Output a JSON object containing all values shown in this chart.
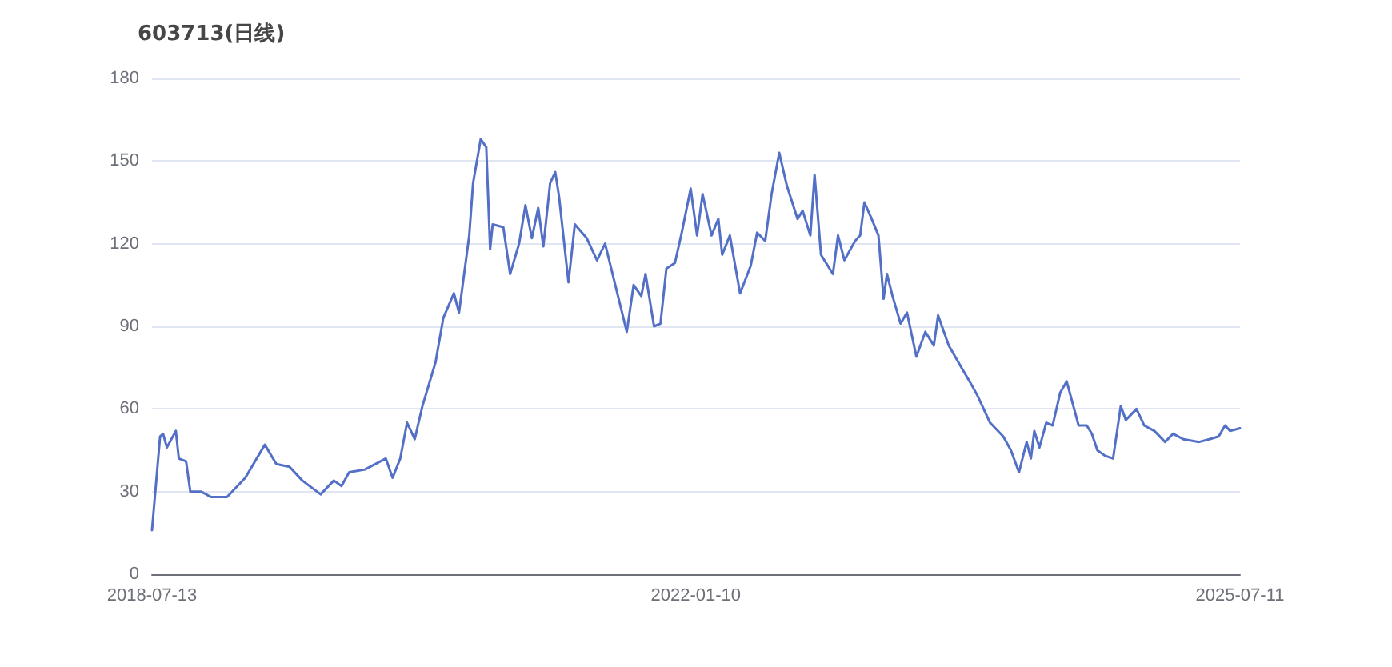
{
  "chart_data": {
    "type": "line",
    "title": "603713(日线)",
    "xlim": [
      "2018-07-13",
      "2025-07-11"
    ],
    "xticks": [
      "2018-07-13",
      "2022-01-10",
      "2025-07-11"
    ],
    "ylim": [
      0,
      180
    ],
    "yticks": [
      0,
      30,
      60,
      90,
      120,
      150,
      180
    ],
    "grid": "y",
    "marker": "none",
    "line_style": "solid",
    "series": [
      {
        "color": "#5470c6",
        "x": [
          "2018-07-13",
          "2018-08-01",
          "2018-08-08",
          "2018-08-17",
          "2018-09-07",
          "2018-09-14",
          "2018-10-01",
          "2018-10-11",
          "2018-11-05",
          "2018-11-29",
          "2019-01-05",
          "2019-02-17",
          "2019-04-04",
          "2019-05-01",
          "2019-06-01",
          "2019-07-01",
          "2019-08-13",
          "2019-09-13",
          "2019-10-01",
          "2019-10-19",
          "2019-11-25",
          "2020-01-13",
          "2020-01-29",
          "2020-02-16",
          "2020-03-03",
          "2020-03-21",
          "2020-04-08",
          "2020-05-09",
          "2020-05-27",
          "2020-06-21",
          "2020-07-03",
          "2020-07-27",
          "2020-08-05",
          "2020-08-23",
          "2020-09-05",
          "2020-09-14",
          "2020-09-20",
          "2020-10-15",
          "2020-10-31",
          "2020-11-21",
          "2020-12-06",
          "2020-12-21",
          "2021-01-05",
          "2021-01-17",
          "2021-02-02",
          "2021-02-14",
          "2021-02-23",
          "2021-03-17",
          "2021-04-01",
          "2021-04-29",
          "2021-05-23",
          "2021-06-11",
          "2021-07-05",
          "2021-08-01",
          "2021-08-17",
          "2021-09-04",
          "2021-09-14",
          "2021-10-04",
          "2021-10-19",
          "2021-11-02",
          "2021-11-22",
          "2021-12-08",
          "2021-12-29",
          "2022-01-13",
          "2022-01-26",
          "2022-02-16",
          "2022-03-04",
          "2022-03-13",
          "2022-03-31",
          "2022-04-24",
          "2022-05-19",
          "2022-06-03",
          "2022-06-22",
          "2022-07-07",
          "2022-07-25",
          "2022-08-12",
          "2022-09-06",
          "2022-09-18",
          "2022-10-06",
          "2022-10-16",
          "2022-10-31",
          "2022-11-28",
          "2022-12-10",
          "2022-12-25",
          "2023-01-19",
          "2023-01-31",
          "2023-02-10",
          "2023-02-27",
          "2023-03-15",
          "2023-03-27",
          "2023-04-04",
          "2023-04-17",
          "2023-05-06",
          "2023-05-21",
          "2023-06-12",
          "2023-07-03",
          "2023-07-23",
          "2023-08-02",
          "2023-08-27",
          "2023-09-26",
          "2023-10-15",
          "2023-11-02",
          "2023-12-02",
          "2024-01-02",
          "2024-01-20",
          "2024-02-08",
          "2024-02-26",
          "2024-03-07",
          "2024-03-15",
          "2024-03-27",
          "2024-04-12",
          "2024-04-27",
          "2024-05-15",
          "2024-05-30",
          "2024-06-27",
          "2024-07-16",
          "2024-07-28",
          "2024-08-10",
          "2024-08-28",
          "2024-09-16",
          "2024-10-04",
          "2024-10-16",
          "2024-11-10",
          "2024-11-28",
          "2024-12-22",
          "2025-01-16",
          "2025-02-04",
          "2025-02-28",
          "2025-04-06",
          "2025-04-30",
          "2025-05-22",
          "2025-06-06",
          "2025-06-18",
          "2025-07-11"
        ],
        "values": [
          16,
          50,
          51,
          46,
          52,
          42,
          41,
          30,
          30,
          28,
          28,
          35,
          47,
          40,
          39,
          34,
          29,
          34,
          32,
          37,
          38,
          42,
          35,
          42,
          55,
          49,
          61,
          77,
          93,
          102,
          95,
          123,
          142,
          158,
          155,
          118,
          127,
          126,
          109,
          120,
          134,
          122,
          133,
          119,
          142,
          146,
          137,
          106,
          127,
          122,
          114,
          120,
          105,
          88,
          105,
          101,
          109,
          90,
          91,
          111,
          113,
          124,
          140,
          123,
          138,
          123,
          129,
          116,
          123,
          102,
          112,
          124,
          121,
          138,
          153,
          141,
          129,
          132,
          123,
          145,
          116,
          109,
          123,
          114,
          121,
          123,
          135,
          129,
          123,
          100,
          109,
          101,
          91,
          95,
          79,
          88,
          83,
          94,
          83,
          75,
          70,
          65,
          55,
          50,
          45,
          37,
          48,
          42,
          52,
          46,
          55,
          54,
          66,
          70,
          54,
          54,
          51,
          45,
          43,
          42,
          61,
          56,
          60,
          54,
          52,
          48,
          51,
          49,
          48,
          49,
          50,
          54,
          52,
          53
        ]
      }
    ]
  }
}
